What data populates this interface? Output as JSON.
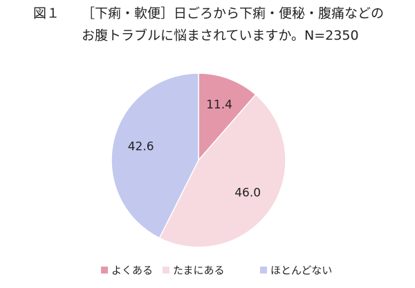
{
  "chart_data": {
    "type": "pie",
    "figure_label": "図１",
    "title": [
      "［下痢・軟便］日ごろから下痢・便秘・腹痛などの",
      "お腹トラブルに悩まされていますか。N=2350"
    ],
    "categories": [
      "よくある",
      "たまにある",
      "ほとんどない"
    ],
    "values": [
      11.4,
      46.0,
      42.6
    ],
    "value_labels": [
      "11.4",
      "46.0",
      "42.6"
    ],
    "colors": [
      "#e597aa",
      "#f7d9e0",
      "#c3c8ee"
    ],
    "legend": "bottom"
  }
}
